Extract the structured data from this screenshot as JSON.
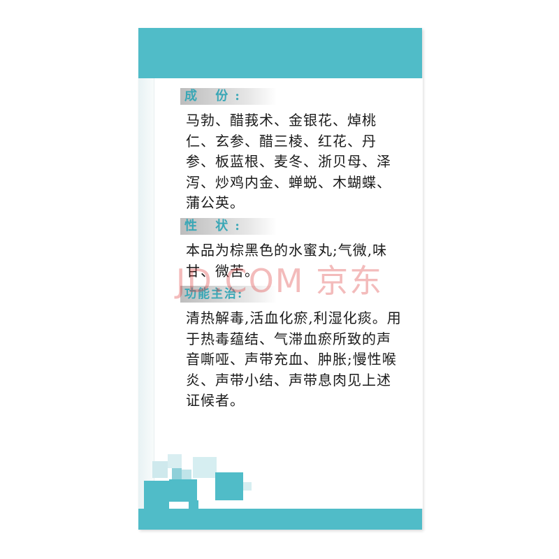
{
  "colors": {
    "accent": "#50bcc8",
    "label_text": "#3aa7b6",
    "watermark": "#dc3c3c"
  },
  "sections": {
    "ingredients": {
      "label": "成  份:",
      "text": "马勃、醋莪术、金银花、焯桃仁、玄参、醋三棱、红花、丹参、板蓝根、麦冬、浙贝母、泽泻、炒鸡内金、蝉蜕、木蝴蝶、蒲公英。"
    },
    "character": {
      "label": "性  状:",
      "text": "本品为棕黑色的水蜜丸;气微,味甘、微苦。"
    },
    "indications": {
      "label": "功能主治:",
      "text": "清热解毒,活血化瘀,利湿化痰。用于热毒蕴结、气滞血瘀所致的声音嘶哑、声带充血、肿胀;慢性喉炎、声带小结、声带息肉见上述证候者。"
    }
  },
  "watermark": "JD.COM 京东"
}
